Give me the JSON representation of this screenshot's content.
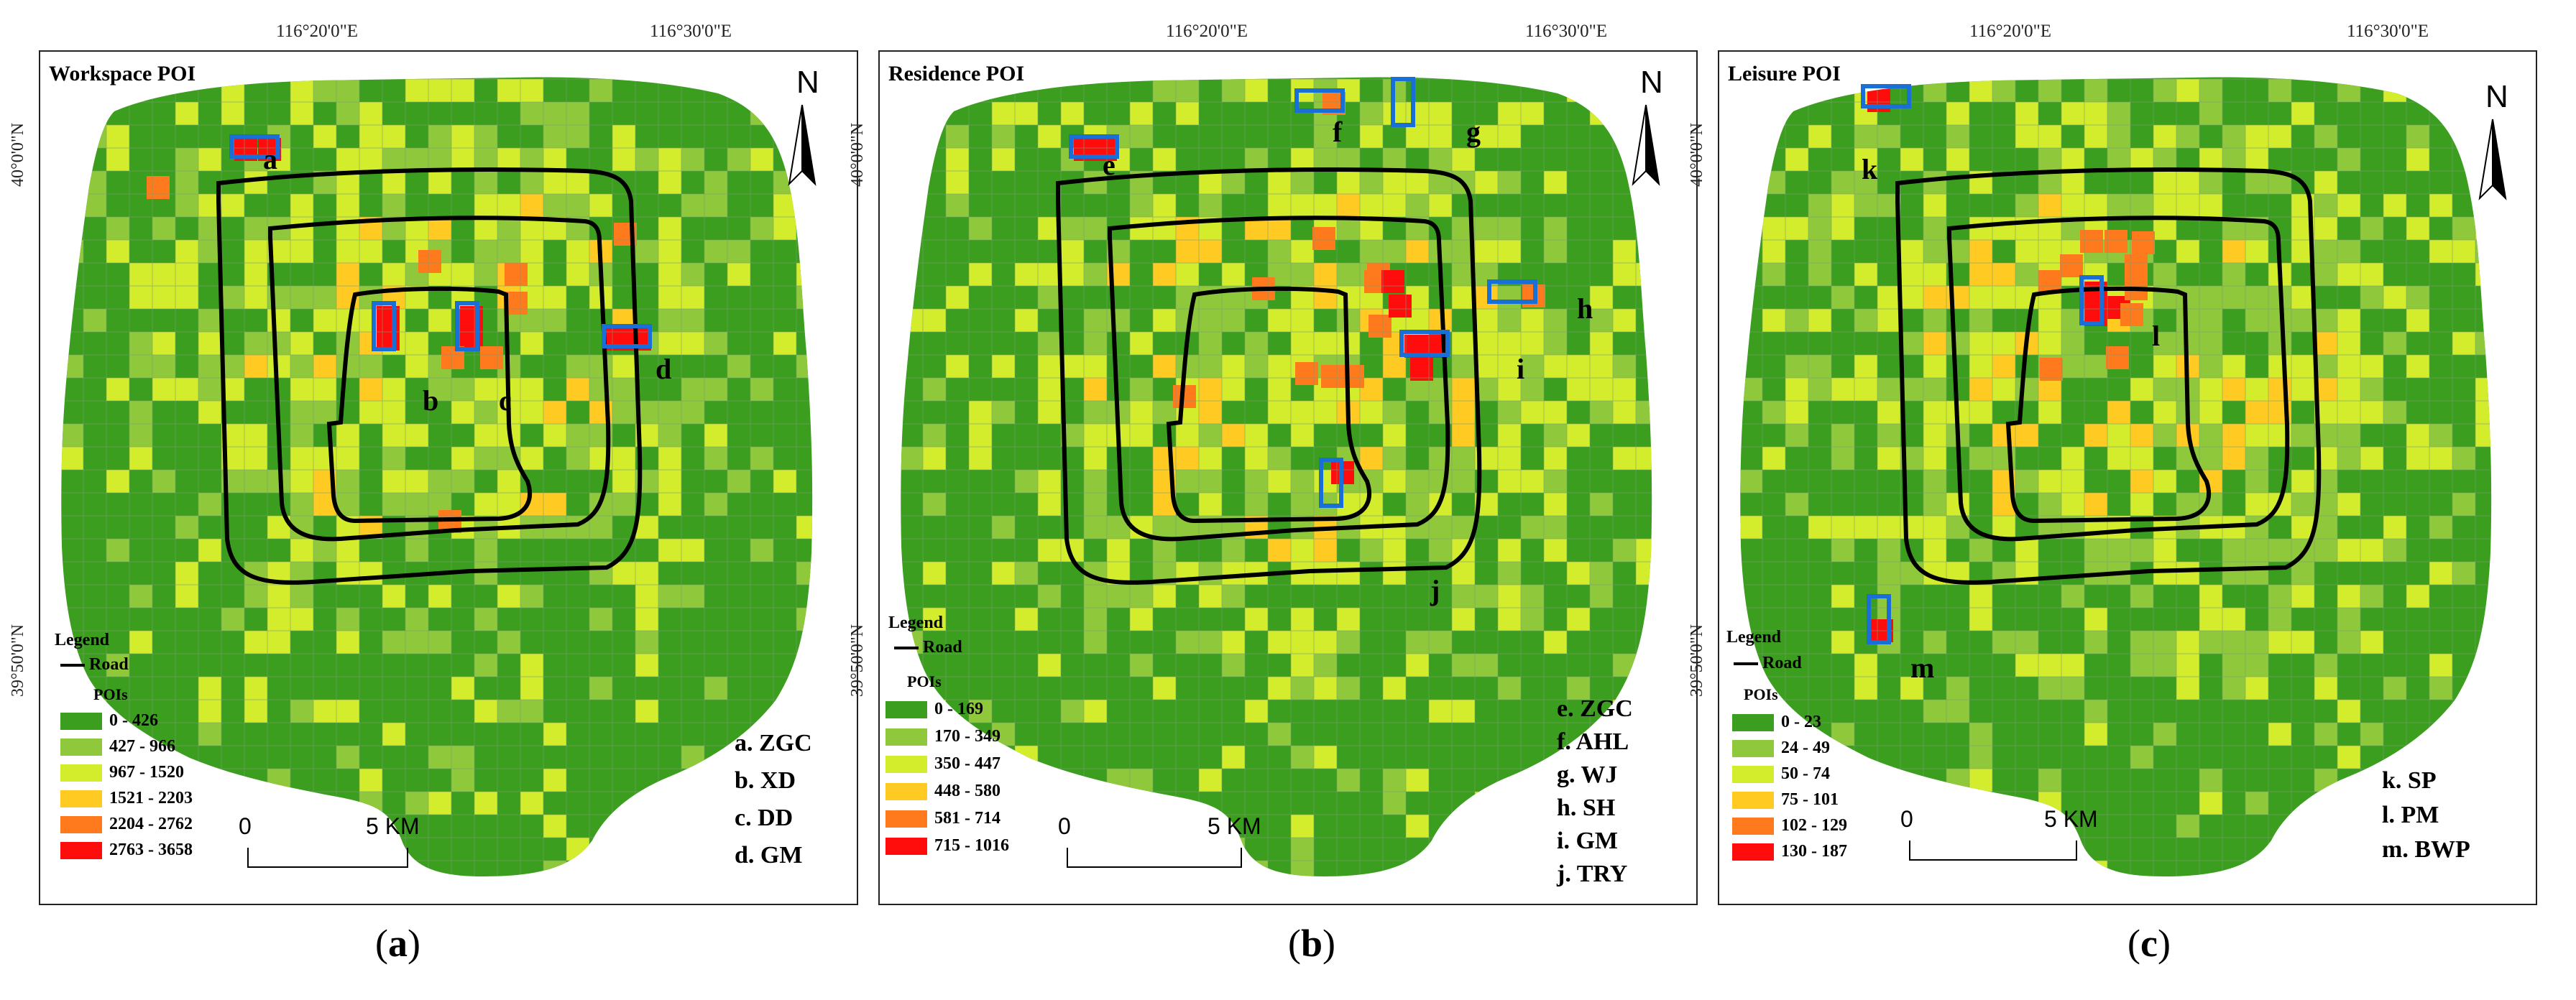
{
  "road_label": "Road",
  "legend_label": "Legend",
  "pois_label": "POIs",
  "scale": {
    "start": "0",
    "end": "5 KM"
  },
  "north_label": "N",
  "colors": {
    "c0": "#3b9e1e",
    "c1": "#8fc83a",
    "c2": "#d3ec2b",
    "c3": "#ffcb22",
    "c4": "#ff7a1c",
    "c5": "#ff0d0d",
    "box": "#1a6fd6",
    "road": "#000000"
  },
  "panels": [
    {
      "title": "Workspace POI",
      "caption_letter": "a",
      "lon_labels": [
        "116°20'0\"E",
        "116°30'0\"E"
      ],
      "lat_labels": [
        "40°0'0\"N",
        "39°50'0\"N"
      ],
      "classes": [
        "0 - 426",
        "427 - 966",
        "967 - 1520",
        "1521 - 2203",
        "2204 - 2762",
        "2763 - 3658"
      ],
      "hotspot_labels": [
        "a",
        "b",
        "c",
        "d"
      ],
      "key": [
        "a. ZGC",
        "b. XD",
        "c. DD",
        "d. GM"
      ]
    },
    {
      "title": "Residence POI",
      "caption_letter": "b",
      "lon_labels": [
        "116°20'0\"E",
        "116°30'0\"E"
      ],
      "lat_labels": [
        "40°0'0\"N",
        "39°50'0\"N"
      ],
      "classes": [
        "0 - 169",
        "170 - 349",
        "350 - 447",
        "448 - 580",
        "581 - 714",
        "715 - 1016"
      ],
      "hotspot_labels": [
        "e",
        "f",
        "g",
        "h",
        "i",
        "j"
      ],
      "key": [
        "e. ZGC",
        "f. AHL",
        "g. WJ",
        "h. SH",
        "i. GM",
        "j. TRY"
      ]
    },
    {
      "title": "Leisure POI",
      "caption_letter": "c",
      "lon_labels": [
        "116°20'0\"E",
        "116°30'0\"E"
      ],
      "lat_labels": [
        "40°0'0\"N",
        "39°50'0\"N"
      ],
      "classes": [
        "0 - 23",
        "24 - 49",
        "50 - 74",
        "75 - 101",
        "102 - 129",
        "130 - 187"
      ],
      "hotspot_labels": [
        "k",
        "l",
        "m"
      ],
      "key": [
        "k. SP",
        "l. PM",
        "m. BWP"
      ]
    }
  ]
}
